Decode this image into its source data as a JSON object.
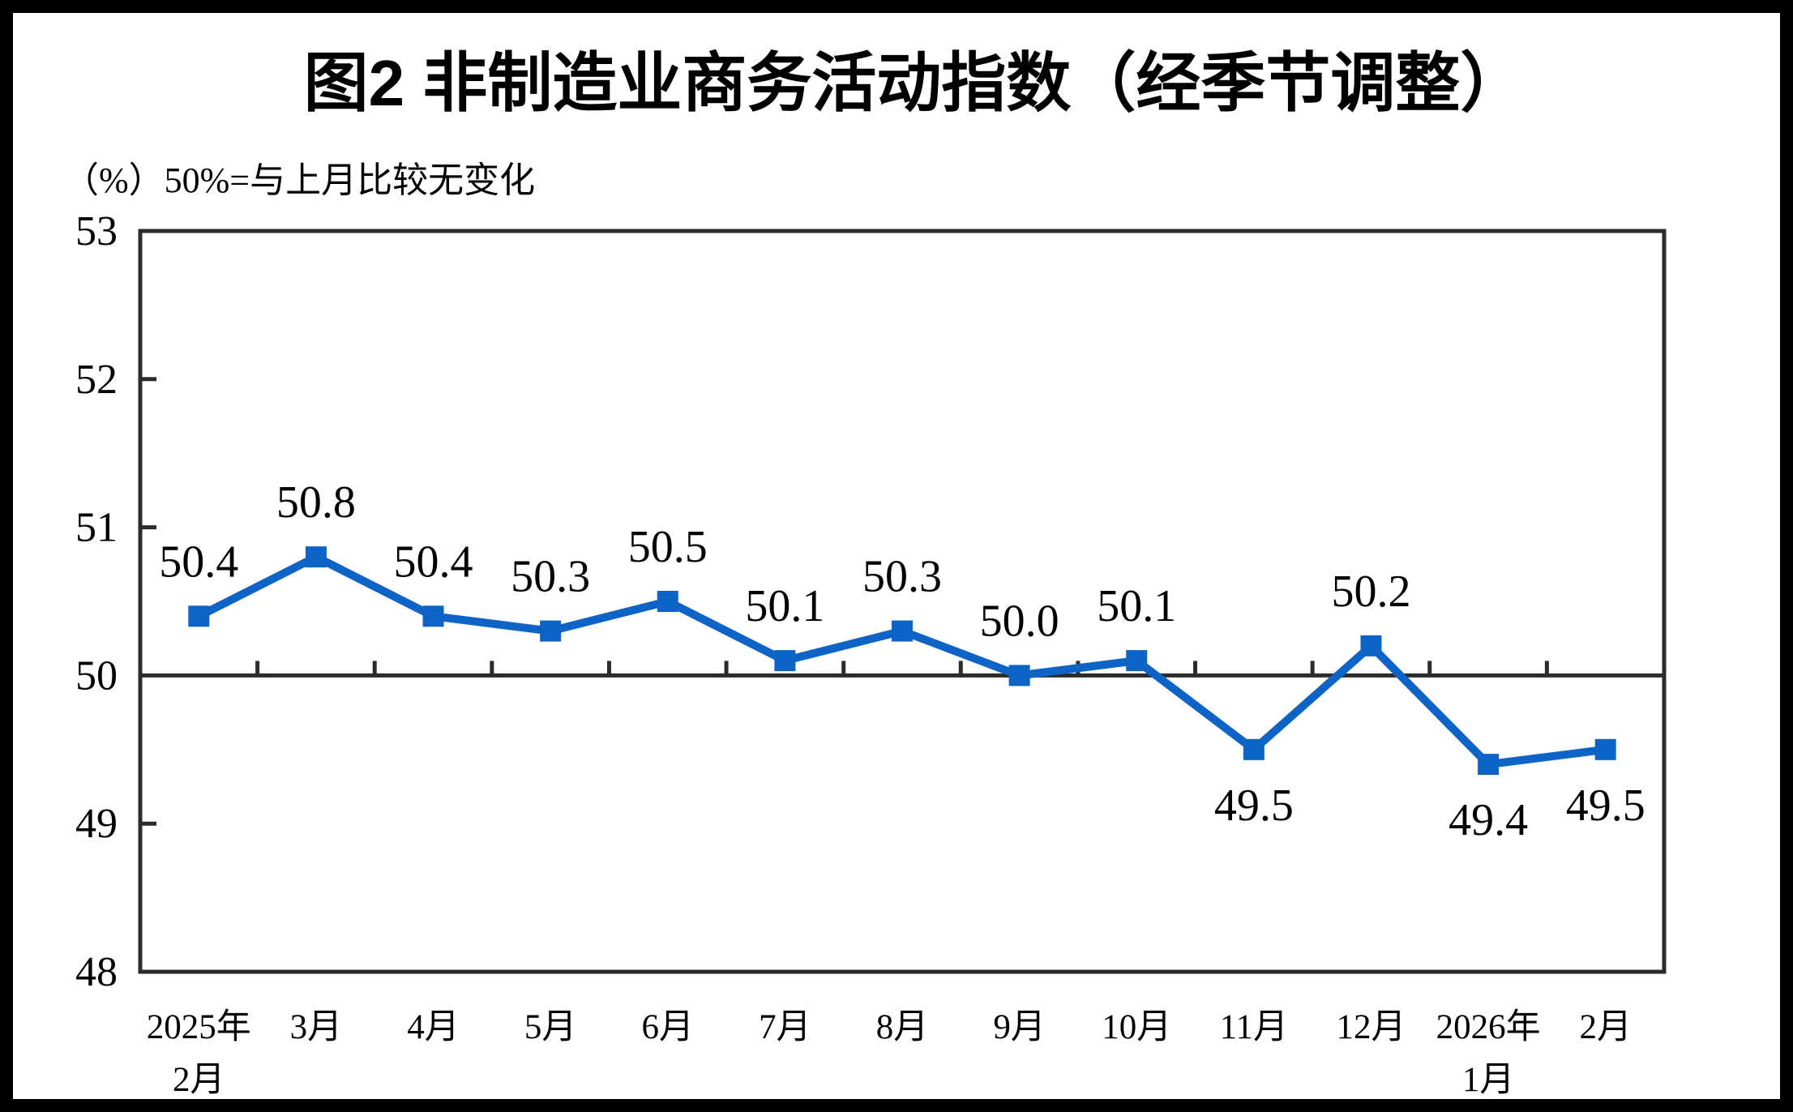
{
  "title": "图2 非制造业商务活动指数（经季节调整）",
  "subtitle": "（%）50%=与上月比较无变化",
  "chart_data": {
    "type": "line",
    "title": "图2 非制造业商务活动指数（经季节调整）",
    "unit_note": "（%）50%=与上月比较无变化",
    "categories": [
      "2025年\n2月",
      "3月",
      "4月",
      "5月",
      "6月",
      "7月",
      "8月",
      "9月",
      "10月",
      "11月",
      "12月",
      "2026年\n1月",
      "2月"
    ],
    "series": [
      {
        "name": "非制造业商务活动指数（经季节调整）",
        "values": [
          50.4,
          50.8,
          50.4,
          50.3,
          50.5,
          50.1,
          50.3,
          50.0,
          50.1,
          49.5,
          50.2,
          49.4,
          49.5
        ]
      }
    ],
    "data_labels": [
      "50.4",
      "50.8",
      "50.4",
      "50.3",
      "50.5",
      "50.1",
      "50.3",
      "50.0",
      "50.1",
      "49.5",
      "50.2",
      "49.4",
      "49.5"
    ],
    "ylim": [
      48,
      53
    ],
    "yticks": [
      53,
      52,
      51,
      50,
      49,
      48
    ],
    "baseline": 50,
    "grid": false,
    "legend": "none",
    "marker": "square",
    "colors": {
      "line": "#0D63C6",
      "marker": "#0D63C6",
      "axis": "#2b2b2b",
      "text": "#000000",
      "background": "#ffffff",
      "frame": "#000000"
    }
  }
}
